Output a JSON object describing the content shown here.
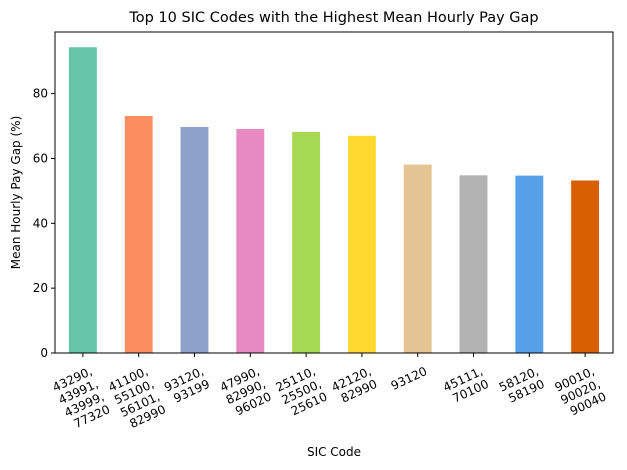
{
  "chart_data": {
    "type": "bar",
    "title": "Top 10 SIC Codes with the Highest Mean Hourly Pay Gap",
    "xlabel": "SIC Code",
    "ylabel": "Mean Hourly Pay Gap (%)",
    "ylim": [
      0,
      99
    ],
    "yticks": [
      0,
      20,
      40,
      60,
      80
    ],
    "grid": false,
    "categories": [
      "43290,\n43991,\n43999,\n77320",
      "41100,\n55100,\n56101,\n82990",
      "93120,\n93199",
      "47990,\n82990,\n96020",
      "25110,\n25500,\n25610",
      "42120,\n82990",
      "93120",
      "45111,\n70100",
      "58120,\n58190",
      "90010,\n90020,\n90040"
    ],
    "values": [
      94.3,
      73.1,
      69.7,
      69.1,
      68.2,
      67.0,
      58.1,
      54.8,
      54.7,
      53.2
    ],
    "colors": [
      "#66c5a6",
      "#fc8d62",
      "#8da0cb",
      "#e78ac3",
      "#a6d854",
      "#ffd92f",
      "#e5c494",
      "#b3b3b3",
      "#56a0ea",
      "#d95f02"
    ]
  }
}
